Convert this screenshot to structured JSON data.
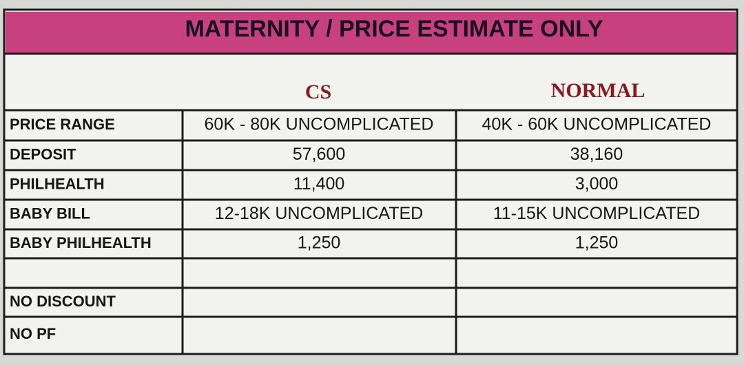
{
  "header": {
    "title": "MATERNITY / PRICE ESTIMATE ONLY"
  },
  "table": {
    "columns": [
      "CS",
      "NORMAL"
    ],
    "rows": [
      [
        "PRICE RANGE",
        "60K - 80K UNCOMPLICATED",
        "40K - 60K UNCOMPLICATED"
      ],
      [
        "DEPOSIT",
        "57,600",
        "38,160"
      ],
      [
        "PHILHEALTH",
        "11,400",
        "3,000"
      ],
      [
        "BABY BILL",
        "12-18K UNCOMPLICATED",
        "11-15K UNCOMPLICATED"
      ],
      [
        "BABY PHILHEALTH",
        "1,250",
        "1,250"
      ],
      [
        "NO DISCOUNT"
      ],
      [
        "NO PF"
      ]
    ]
  }
}
